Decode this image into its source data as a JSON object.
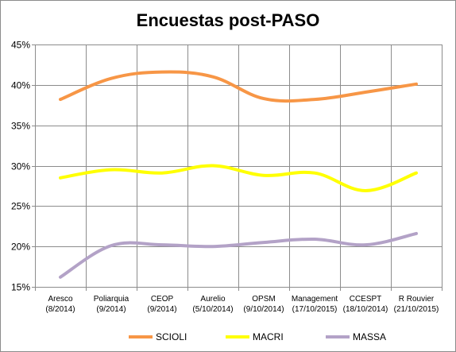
{
  "chart_data": {
    "type": "line",
    "title": "Encuestas post-PASO",
    "xlabel": "",
    "ylabel": "",
    "categories": [
      [
        "Aresco",
        "(8/2014)"
      ],
      [
        "Poliarquia",
        "(9/2014)"
      ],
      [
        "CEOP",
        "(9/2014)"
      ],
      [
        "Aurelio",
        "(5/10/2014)"
      ],
      [
        "OPSM",
        "(9/10/2014)"
      ],
      [
        "Management",
        "(17/10/2015)"
      ],
      [
        "CCESPT",
        "(18/10/2014)"
      ],
      [
        "R Rouvier",
        "(21/10/2015)"
      ]
    ],
    "ylim": [
      0.15,
      0.45
    ],
    "yticks": [
      0.15,
      0.2,
      0.25,
      0.3,
      0.35,
      0.4,
      0.45
    ],
    "ytick_labels": [
      "15%",
      "20%",
      "25%",
      "30%",
      "35%",
      "40%",
      "45%"
    ],
    "grid": true,
    "legend_position": "bottom",
    "series": [
      {
        "name": "SCIOLI",
        "color": "#F79646",
        "values": [
          0.382,
          0.408,
          0.416,
          0.41,
          0.383,
          0.382,
          0.391,
          0.401
        ]
      },
      {
        "name": "MACRI",
        "color": "#FFFF00",
        "values": [
          0.285,
          0.295,
          0.291,
          0.3,
          0.288,
          0.291,
          0.269,
          0.291
        ]
      },
      {
        "name": "MASSA",
        "color": "#B3A2C7",
        "values": [
          0.162,
          0.201,
          0.202,
          0.2,
          0.205,
          0.209,
          0.202,
          0.216
        ]
      }
    ]
  }
}
